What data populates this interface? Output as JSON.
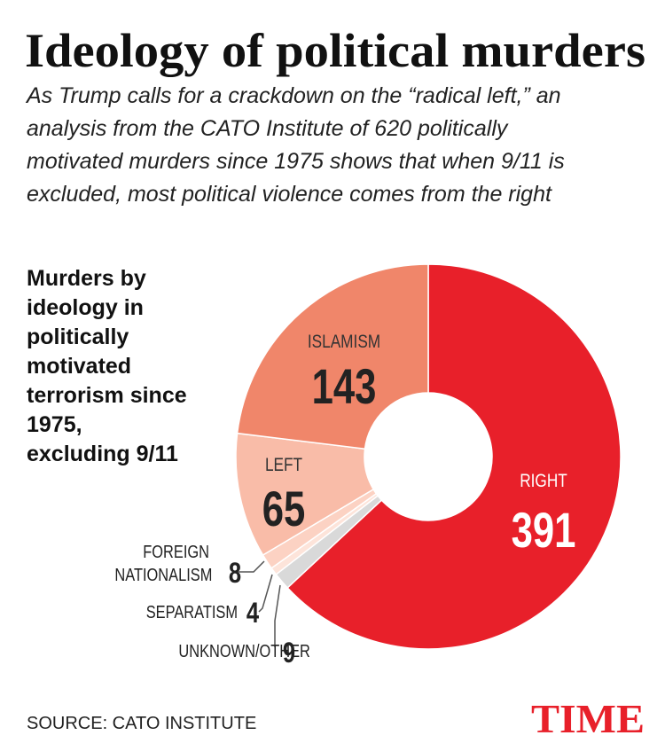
{
  "chart_data": {
    "type": "donut",
    "title": "Ideology of political murders",
    "subtitle": "As Trump calls for a crackdown on the “radical left,” an analysis from the CATO Institute of 620 politically motivated murders since 1975 shows that when 9/11 is excluded, most political violence comes from the right",
    "chart_label": "Murders by ideology in politically motivated terrorism since 1975, excluding 9/11",
    "categories": [
      "RIGHT",
      "UNKNOWN/OTHER",
      "SEPARATISM",
      "FOREIGN NATIONALISM",
      "LEFT",
      "ISLAMISM"
    ],
    "values": [
      391,
      9,
      4,
      8,
      65,
      143
    ],
    "colors": [
      "#e8202a",
      "#d9d9d9",
      "#fde4da",
      "#fcd2c3",
      "#f9bca8",
      "#f0866a"
    ],
    "source": "SOURCE: CATO INSTITUTE",
    "logo": "TIME"
  }
}
